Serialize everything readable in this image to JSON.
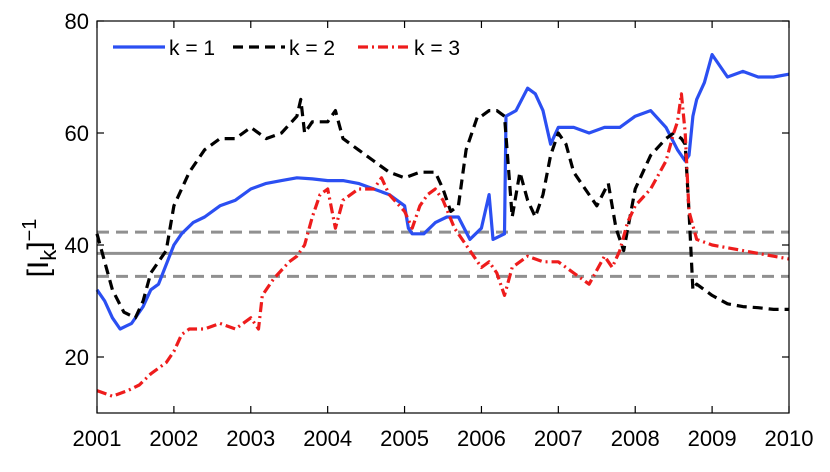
{
  "chart_data": {
    "type": "line",
    "xlim": [
      2001,
      2010
    ],
    "ylim": [
      10,
      80
    ],
    "xticks": [
      2001,
      2002,
      2003,
      2004,
      2005,
      2006,
      2007,
      2008,
      2009,
      2010
    ],
    "yticks": [
      20,
      40,
      60,
      80
    ],
    "xtick_labels": [
      "2001",
      "2002",
      "2003",
      "2004",
      "2005",
      "2006",
      "2007",
      "2008",
      "2009",
      "2010"
    ],
    "ytick_labels": [
      "20",
      "40",
      "60",
      "80"
    ],
    "ylabel_main": "[I",
    "ylabel_sub": "k",
    "ylabel_close": "]",
    "ylabel_sup": "−1",
    "grid": false,
    "legend_position": "top-left",
    "series": [
      {
        "name": "k = 1",
        "color": "#2b4ff2",
        "style": "solid",
        "x": [
          2001.0,
          2001.1,
          2001.2,
          2001.3,
          2001.45,
          2001.6,
          2001.7,
          2001.8,
          2002.0,
          2002.1,
          2002.25,
          2002.4,
          2002.6,
          2002.8,
          2003.0,
          2003.2,
          2003.4,
          2003.6,
          2003.8,
          2004.0,
          2004.2,
          2004.4,
          2004.6,
          2004.8,
          2005.0,
          2005.05,
          2005.1,
          2005.25,
          2005.4,
          2005.55,
          2005.7,
          2005.85,
          2006.0,
          2006.1,
          2006.15,
          2006.3,
          2006.32,
          2006.45,
          2006.6,
          2006.7,
          2006.8,
          2006.9,
          2007.0,
          2007.2,
          2007.4,
          2007.6,
          2007.8,
          2008.0,
          2008.2,
          2008.4,
          2008.55,
          2008.65,
          2008.7,
          2008.75,
          2008.8,
          2008.9,
          2009.0,
          2009.2,
          2009.4,
          2009.6,
          2009.8,
          2010.0
        ],
        "y": [
          32,
          30,
          27,
          25,
          26,
          29,
          32,
          33,
          40,
          42,
          44,
          45,
          47,
          48,
          50,
          51,
          51.5,
          52,
          51.8,
          51.5,
          51.5,
          51,
          50,
          49,
          47,
          43,
          42,
          42,
          44,
          45,
          45,
          41,
          43,
          49,
          41,
          42,
          63,
          64,
          68,
          67,
          64,
          58,
          61,
          61,
          60,
          61,
          61,
          63,
          64,
          61,
          57,
          55,
          56,
          63,
          66,
          69,
          74,
          70,
          71,
          70,
          70,
          70.5
        ]
      },
      {
        "name": "k = 2",
        "color": "#000000",
        "style": "dashed",
        "x": [
          2001.0,
          2001.1,
          2001.2,
          2001.35,
          2001.5,
          2001.6,
          2001.7,
          2001.8,
          2001.9,
          2002.0,
          2002.2,
          2002.4,
          2002.6,
          2002.8,
          2003.0,
          2003.2,
          2003.4,
          2003.6,
          2003.65,
          2003.7,
          2003.8,
          2004.0,
          2004.1,
          2004.2,
          2004.4,
          2004.6,
          2004.8,
          2005.0,
          2005.2,
          2005.4,
          2005.5,
          2005.6,
          2005.7,
          2005.8,
          2005.95,
          2006.0,
          2006.1,
          2006.2,
          2006.3,
          2006.4,
          2006.5,
          2006.6,
          2006.7,
          2006.8,
          2006.9,
          2007.0,
          2007.1,
          2007.2,
          2007.35,
          2007.5,
          2007.65,
          2007.75,
          2007.85,
          2008.0,
          2008.2,
          2008.4,
          2008.5,
          2008.6,
          2008.65,
          2008.7,
          2008.75,
          2008.8,
          2008.9,
          2009.0,
          2009.2,
          2009.4,
          2009.6,
          2009.8,
          2010.0
        ],
        "y": [
          42,
          37,
          32,
          28,
          27,
          30,
          35,
          37,
          39,
          47,
          53,
          57,
          59,
          59,
          61,
          59,
          60,
          63,
          66,
          60,
          62,
          62,
          64,
          59,
          57,
          55,
          53,
          52,
          53,
          53,
          50,
          46,
          47,
          57,
          63,
          63,
          64,
          64,
          63,
          45,
          53,
          48,
          45,
          49,
          56,
          60,
          58,
          53,
          50,
          47,
          51,
          43,
          39,
          50,
          56,
          59,
          60,
          59,
          58,
          46,
          32,
          33,
          32,
          31,
          29.5,
          29,
          28.8,
          28.5,
          28.5
        ]
      },
      {
        "name": "k = 3",
        "color": "#ee1c1c",
        "style": "dashdot",
        "x": [
          2001.0,
          2001.2,
          2001.4,
          2001.55,
          2001.7,
          2001.8,
          2001.9,
          2002.0,
          2002.1,
          2002.2,
          2002.4,
          2002.6,
          2002.8,
          2003.0,
          2003.1,
          2003.15,
          2003.3,
          2003.5,
          2003.6,
          2003.7,
          2003.8,
          2003.9,
          2004.0,
          2004.1,
          2004.2,
          2004.3,
          2004.4,
          2004.6,
          2004.7,
          2004.8,
          2005.0,
          2005.1,
          2005.2,
          2005.3,
          2005.4,
          2005.5,
          2005.65,
          2005.8,
          2006.0,
          2006.1,
          2006.2,
          2006.3,
          2006.4,
          2006.6,
          2006.8,
          2007.0,
          2007.2,
          2007.4,
          2007.6,
          2007.7,
          2007.8,
          2007.9,
          2008.0,
          2008.2,
          2008.4,
          2008.5,
          2008.55,
          2008.6,
          2008.65,
          2008.7,
          2008.8,
          2009.0,
          2009.2,
          2009.4,
          2009.6,
          2009.8,
          2010.0
        ],
        "y": [
          14,
          13,
          14,
          15,
          17,
          18,
          19,
          21,
          24,
          25,
          25,
          26,
          25,
          27,
          25,
          31,
          34,
          37,
          38,
          40,
          45,
          49,
          50,
          43,
          48,
          49,
          50,
          50,
          52,
          49,
          46,
          43,
          47,
          49,
          50,
          48,
          43,
          40,
          36,
          37,
          35,
          31,
          36,
          38,
          37,
          37,
          35,
          33,
          38,
          36,
          39,
          44,
          47,
          50,
          55,
          60,
          62,
          67,
          60,
          46,
          41,
          40,
          39.5,
          39,
          38.5,
          38,
          37.5
        ]
      }
    ],
    "reference_lines": [
      {
        "y": 38.5,
        "color": "#909090",
        "style": "solid"
      },
      {
        "y": 42.3,
        "color": "#909090",
        "style": "dashed"
      },
      {
        "y": 34.4,
        "color": "#909090",
        "style": "dashed"
      }
    ]
  }
}
